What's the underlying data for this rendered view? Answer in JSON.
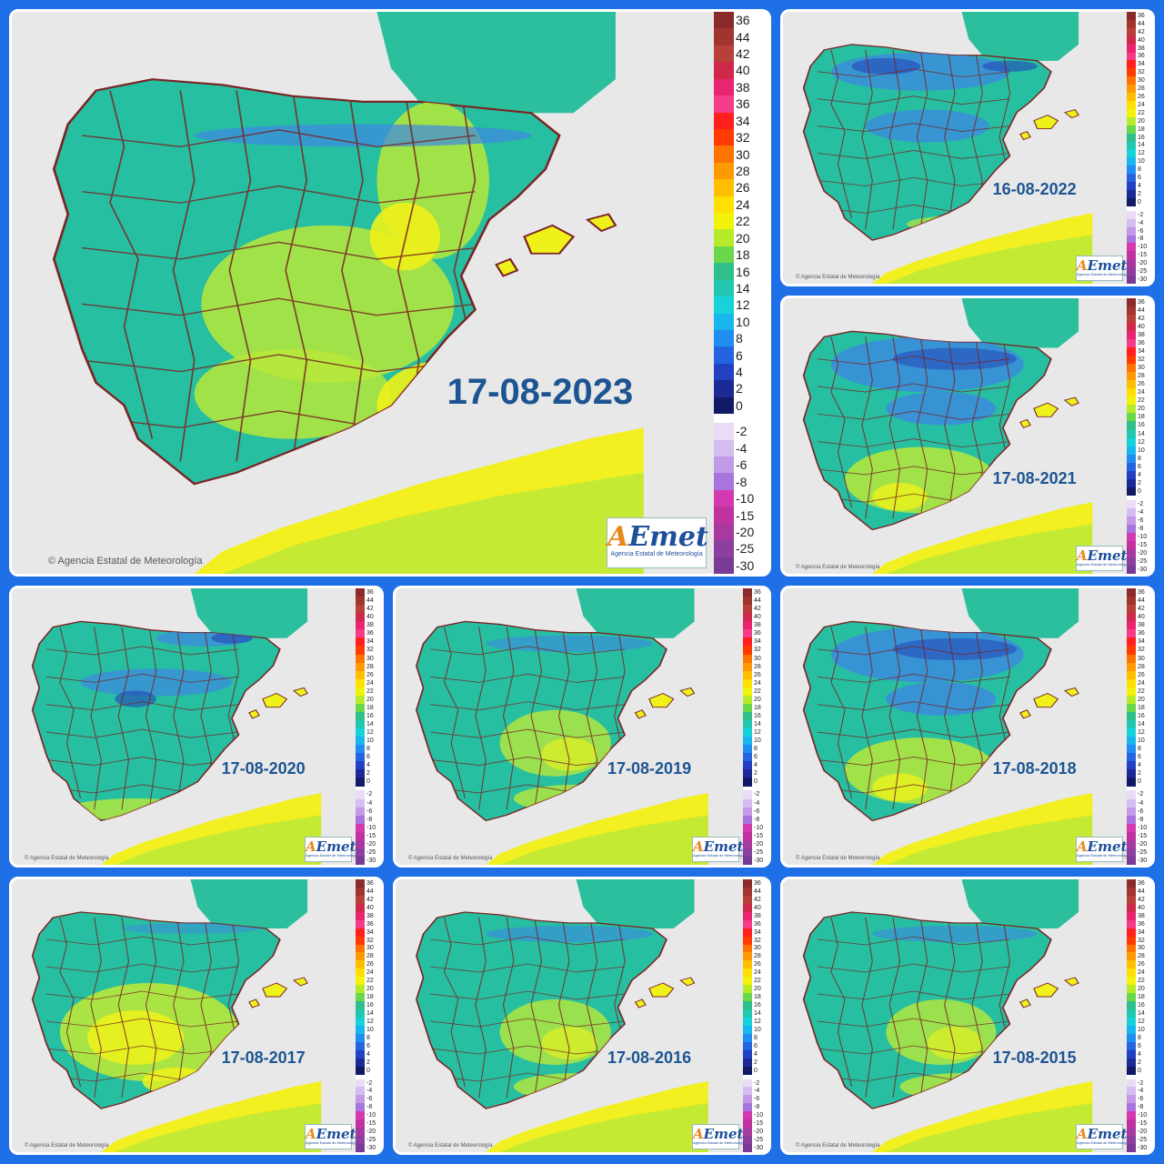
{
  "credit_text": "Agencia Estatal de Meteorología",
  "logo": {
    "word_a": "A",
    "word_rest": "Emet",
    "subtitle": "Agencia Estatal de Meteorología"
  },
  "scale": {
    "warm": [
      {
        "label": "36",
        "color": "#8a2a2a"
      },
      {
        "label": "44",
        "color": "#a1342e"
      },
      {
        "label": "42",
        "color": "#b8403a"
      },
      {
        "label": "40",
        "color": "#d0284a"
      },
      {
        "label": "38",
        "color": "#e8256e"
      },
      {
        "label": "36",
        "color": "#f53c8a"
      },
      {
        "label": "34",
        "color": "#ff1f1f"
      },
      {
        "label": "32",
        "color": "#ff3b00"
      },
      {
        "label": "30",
        "color": "#ff7300"
      },
      {
        "label": "28",
        "color": "#ff9a00"
      },
      {
        "label": "26",
        "color": "#ffbf00"
      },
      {
        "label": "24",
        "color": "#ffe000"
      },
      {
        "label": "22",
        "color": "#f2f20a"
      },
      {
        "label": "20",
        "color": "#b8ea2c"
      },
      {
        "label": "18",
        "color": "#6ad84a"
      },
      {
        "label": "16",
        "color": "#2fbf8a"
      },
      {
        "label": "14",
        "color": "#21c7b0"
      },
      {
        "label": "12",
        "color": "#17d2d8"
      },
      {
        "label": "10",
        "color": "#19b6ee"
      },
      {
        "label": "8",
        "color": "#1f8ef0"
      },
      {
        "label": "6",
        "color": "#2564e0"
      },
      {
        "label": "4",
        "color": "#2240c0"
      },
      {
        "label": "2",
        "color": "#1c2a96"
      },
      {
        "label": "0",
        "color": "#121a66"
      }
    ],
    "cold": [
      {
        "label": "-2",
        "color": "#ebdcf5"
      },
      {
        "label": "-4",
        "color": "#d6bdef"
      },
      {
        "label": "-6",
        "color": "#c29ae8"
      },
      {
        "label": "-8",
        "color": "#a874de"
      },
      {
        "label": "-10",
        "color": "#d43ab0"
      },
      {
        "label": "-15",
        "color": "#c0339e"
      },
      {
        "label": "-20",
        "color": "#a8399e"
      },
      {
        "label": "-25",
        "color": "#8c3f9e"
      },
      {
        "label": "-30",
        "color": "#7a3b96"
      }
    ]
  },
  "colors": {
    "sea": "#e8e8e8",
    "land_base": "#27bfa1",
    "warm_land": "#b9e83a",
    "hot_land": "#eef21a",
    "cold_land": "#3d88e2",
    "very_cold": "#2545b8",
    "border": "#7a2424",
    "france": "#2bbf9d",
    "africa": "#f2f020"
  },
  "panels": [
    {
      "date": "17-08-2023",
      "scheme": "warm"
    },
    {
      "date": "16-08-2022",
      "scheme": "cold"
    },
    {
      "date": "17-08-2021",
      "scheme": "mixed"
    },
    {
      "date": "17-08-2020",
      "scheme": "cool"
    },
    {
      "date": "17-08-2019",
      "scheme": "mild"
    },
    {
      "date": "17-08-2018",
      "scheme": "mixed"
    },
    {
      "date": "17-08-2017",
      "scheme": "hot"
    },
    {
      "date": "17-08-2016",
      "scheme": "mild"
    },
    {
      "date": "17-08-2015",
      "scheme": "mild"
    }
  ]
}
